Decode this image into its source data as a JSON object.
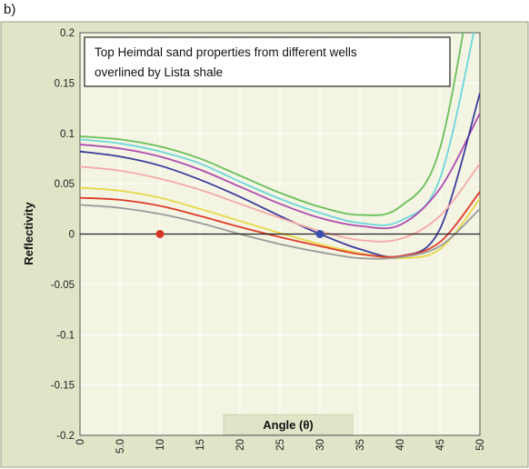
{
  "panel_label": "b)",
  "chart_data": {
    "type": "line",
    "title": "",
    "annotation": [
      "Top Heimdal sand properties from different wells",
      "overlined by Lista shale"
    ],
    "xlabel": "Angle (θ)",
    "ylabel": "Reflectivity",
    "xlim": [
      0,
      50
    ],
    "ylim": [
      -0.2,
      0.2
    ],
    "x_ticks": [
      0,
      5,
      10,
      15,
      20,
      25,
      30,
      35,
      40,
      45,
      50
    ],
    "x_tick_labels": [
      "0",
      "5.0",
      "10",
      "15",
      "20",
      "25",
      "30",
      "35",
      "40",
      "45",
      "50"
    ],
    "y_ticks": [
      0.2,
      0.15,
      0.1,
      0.05,
      0,
      -0.05,
      -0.1,
      -0.15,
      -0.2
    ],
    "y_tick_labels": [
      "0.2",
      "0.15",
      "0.1",
      "0.05",
      "0",
      "-0.05",
      "-0.1",
      "-0.15",
      "-0.2"
    ],
    "grid": true,
    "legend": "none",
    "colors": {
      "plot_bg": "#f3f4e2",
      "outer_bg": "#dfe6c8",
      "grid": "#ffffff",
      "zero_line": "#222222"
    },
    "x": [
      0,
      5,
      10,
      15,
      20,
      25,
      30,
      35,
      40,
      45,
      50
    ],
    "series": [
      {
        "color": "#6abf5a",
        "values": [
          0.097,
          0.094,
          0.087,
          0.075,
          0.058,
          0.041,
          0.027,
          0.019,
          0.027,
          0.085,
          0.3
        ]
      },
      {
        "color": "#6cd6dc",
        "values": [
          0.094,
          0.09,
          0.082,
          0.07,
          0.052,
          0.035,
          0.021,
          0.011,
          0.013,
          0.055,
          0.23
        ]
      },
      {
        "color": "#b04bb0",
        "values": [
          0.089,
          0.085,
          0.077,
          0.064,
          0.047,
          0.03,
          0.016,
          0.008,
          0.009,
          0.045,
          0.12
        ]
      },
      {
        "color": "#3c3c9c",
        "values": [
          0.082,
          0.077,
          0.068,
          0.054,
          0.037,
          0.018,
          0.0,
          -0.015,
          -0.022,
          0.005,
          0.14
        ]
      },
      {
        "color": "#f4aaaa",
        "values": [
          0.067,
          0.063,
          0.055,
          0.044,
          0.03,
          0.016,
          0.003,
          -0.006,
          -0.005,
          0.018,
          0.07
        ]
      },
      {
        "color": "#e8d84a",
        "values": [
          0.046,
          0.043,
          0.036,
          0.025,
          0.013,
          0.001,
          -0.01,
          -0.019,
          -0.024,
          -0.015,
          0.035
        ]
      },
      {
        "color": "#e03a2a",
        "values": [
          0.036,
          0.034,
          0.028,
          0.018,
          0.007,
          -0.003,
          -0.012,
          -0.02,
          -0.022,
          -0.008,
          0.042
        ]
      },
      {
        "color": "#9a9a9a",
        "values": [
          0.029,
          0.026,
          0.02,
          0.011,
          0.0,
          -0.01,
          -0.018,
          -0.024,
          -0.023,
          -0.012,
          0.025
        ]
      }
    ],
    "points": [
      {
        "x": 10,
        "y": 0,
        "color": "#d8362a"
      },
      {
        "x": 30,
        "y": 0,
        "color": "#3a4fb0"
      }
    ]
  }
}
